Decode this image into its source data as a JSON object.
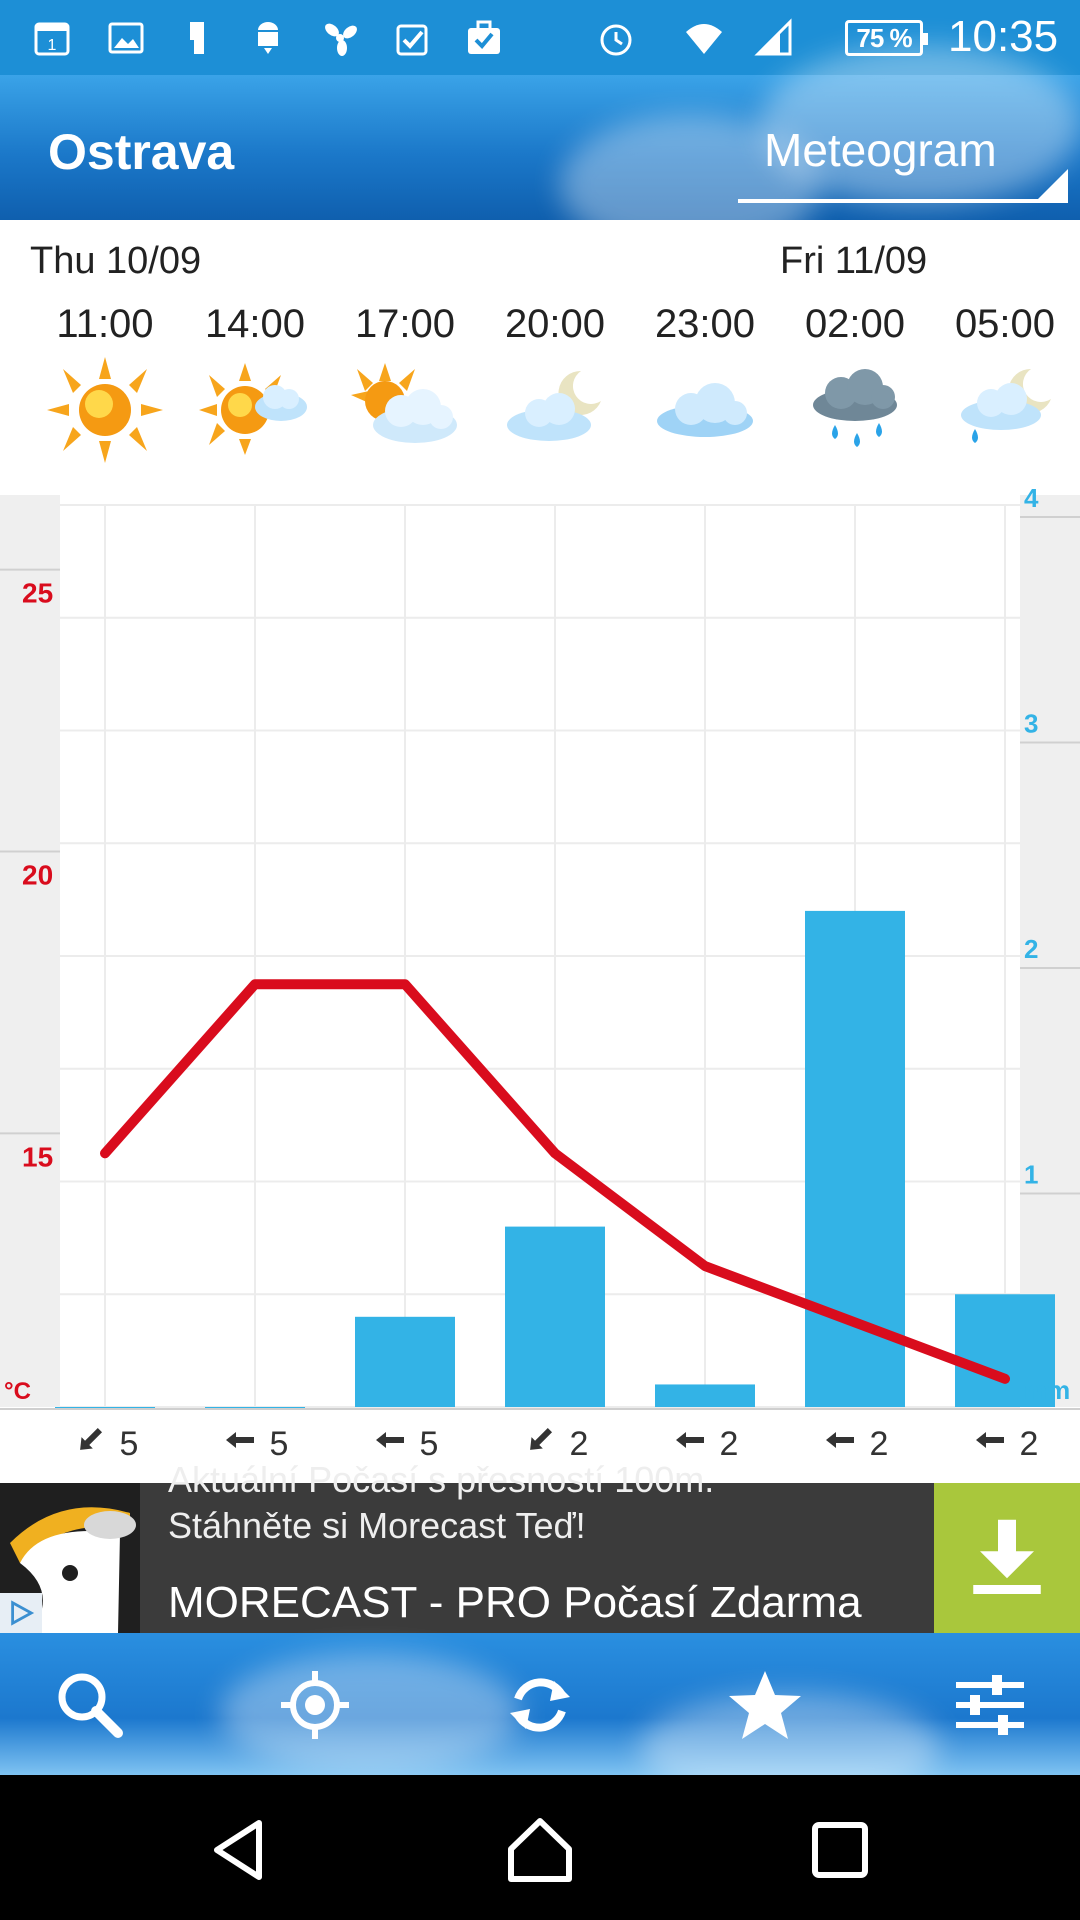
{
  "status_bar": {
    "icons": [
      "calendar-icon",
      "image-icon",
      "usb-icon",
      "android-download-icon",
      "fan-icon",
      "clipboard-check-icon",
      "briefcase-check-icon",
      "alarm-icon",
      "wifi-icon",
      "signal-icon"
    ],
    "calendar_day": "1",
    "battery": "75 %",
    "time": "10:35",
    "color": "#1d8fd6"
  },
  "app_bar": {
    "city": "Ostrava",
    "view": "Meteogram"
  },
  "forecast": {
    "days": [
      {
        "label": "Thu 10/09"
      },
      {
        "label": "Fri 11/09"
      }
    ],
    "hours": [
      "11:00",
      "14:00",
      "17:00",
      "20:00",
      "23:00",
      "02:00",
      "05:00"
    ],
    "weather_icons": [
      "sun-icon",
      "sun-cloud-icon",
      "partly-cloudy-icon",
      "moon-cloud-icon",
      "cloud-icon",
      "rain-cloud-icon",
      "moon-rain-icon"
    ]
  },
  "chart_data": {
    "type": "line",
    "temperature": {
      "name": "°C",
      "color": "#d90c1d",
      "x": [
        "11:00",
        "14:00",
        "17:00",
        "20:00",
        "23:00",
        "02:00",
        "05:00"
      ],
      "values": [
        15,
        18,
        18,
        15,
        13,
        12,
        11
      ],
      "axis_ticks": [
        "25",
        "20",
        "15"
      ],
      "ylim": [
        10.5,
        26.5
      ],
      "unit": "°C"
    },
    "precipitation": {
      "type": "bar",
      "name": "mm",
      "color": "#33b3e6",
      "x": [
        "11:00",
        "14:00",
        "17:00",
        "20:00",
        "23:00",
        "02:00",
        "05:00"
      ],
      "values": [
        0,
        0,
        0.4,
        0.8,
        0.1,
        2.2,
        0.5
      ],
      "axis_ticks": [
        "4",
        "3",
        "2",
        "1"
      ],
      "ylim": [
        0,
        4
      ],
      "unit": "mm"
    },
    "grid": true
  },
  "winds": [
    {
      "dir": "sw",
      "speed": "5"
    },
    {
      "dir": "w",
      "speed": "5"
    },
    {
      "dir": "w",
      "speed": "5"
    },
    {
      "dir": "sw",
      "speed": "2"
    },
    {
      "dir": "w",
      "speed": "2"
    },
    {
      "dir": "w",
      "speed": "2"
    },
    {
      "dir": "w",
      "speed": "2"
    }
  ],
  "ad": {
    "line1": "Aktuální Počasí s přesností 100m.",
    "line2": "Stáhněte si Morecast Teď!",
    "title": "MORECAST - PRO Počasí Zdarma",
    "download_color": "#a9c73c"
  },
  "toolbar": {
    "buttons": [
      "search-icon",
      "locate-icon",
      "refresh-icon",
      "star-icon",
      "settings-sliders-icon"
    ]
  },
  "nav_bar": {
    "buttons": [
      "back-icon",
      "home-icon",
      "recents-icon"
    ]
  }
}
